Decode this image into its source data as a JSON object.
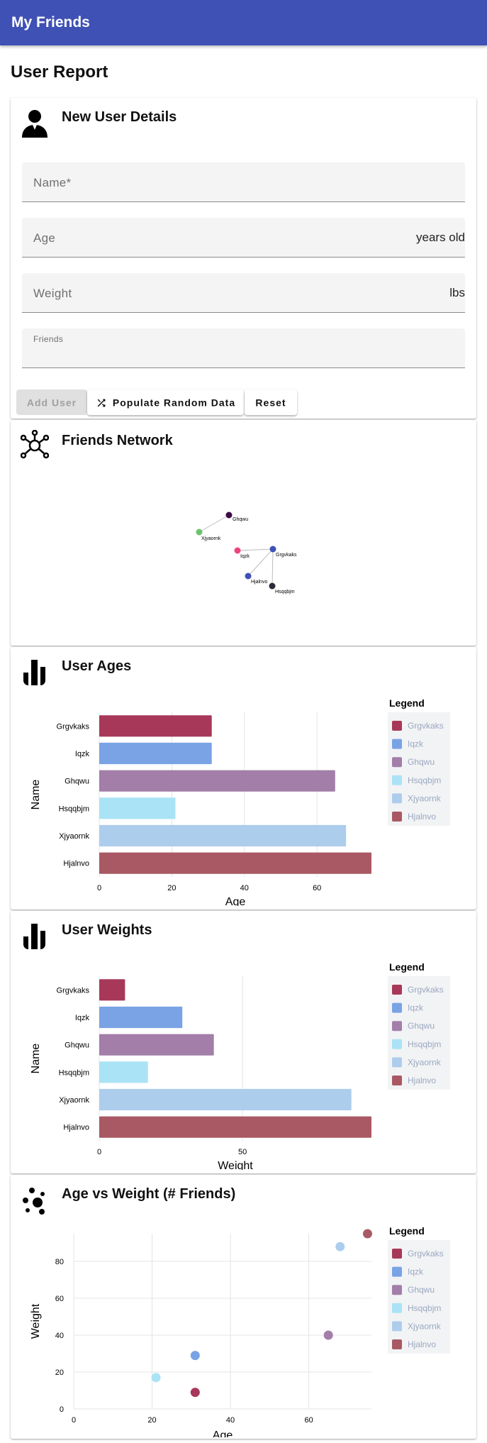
{
  "app": {
    "title": "My Friends"
  },
  "page": {
    "title": "User Report"
  },
  "user_form": {
    "title": "New User Details",
    "name_placeholder": "Name*",
    "age_placeholder": "Age",
    "age_suffix": "years old",
    "weight_placeholder": "Weight",
    "weight_suffix": "lbs",
    "friends_label": "Friends",
    "add_button": "Add User",
    "random_button": "Populate Random Data",
    "reset_button": "Reset",
    "icons": {
      "card": "person-icon",
      "random": "shuffle-icon"
    }
  },
  "network": {
    "title": "Friends Network",
    "icon": "network-icon",
    "nodes": [
      {
        "name": "Ghqwu",
        "color": "#3b0a45"
      },
      {
        "name": "Xjyaornk",
        "color": "#6cc36c"
      },
      {
        "name": "Iqzk",
        "color": "#f0447a"
      },
      {
        "name": "Grgvkaks",
        "color": "#3f51b5"
      },
      {
        "name": "Hjalnvo",
        "color": "#3f51b5"
      },
      {
        "name": "Hsqqbjm",
        "color": "#2a2a38"
      }
    ],
    "links": [
      [
        "Ghqwu",
        "Xjyaornk"
      ],
      [
        "Iqzk",
        "Grgvkaks"
      ],
      [
        "Grgvkaks",
        "Hjalnvo"
      ],
      [
        "Grgvkaks",
        "Hsqqbjm"
      ]
    ]
  },
  "legend": {
    "title": "Legend",
    "items": [
      {
        "name": "Grgvkaks",
        "color": "#a8385a"
      },
      {
        "name": "Iqzk",
        "color": "#7aa3e5"
      },
      {
        "name": "Ghqwu",
        "color": "#a27ea8"
      },
      {
        "name": "Hsqqbjm",
        "color": "#aae3f5"
      },
      {
        "name": "Xjyaornk",
        "color": "#adcded"
      },
      {
        "name": "Hjalnvo",
        "color": "#a95963"
      }
    ]
  },
  "chart_data": [
    {
      "type": "bar",
      "orientation": "horizontal",
      "title": "User Ages",
      "icon": "bar-chart-icon",
      "categories": [
        "Grgvkaks",
        "Iqzk",
        "Ghqwu",
        "Hsqqbjm",
        "Xjyaornk",
        "Hjalnvo"
      ],
      "values": [
        31,
        31,
        65,
        21,
        68,
        75
      ],
      "xlabel": "Age",
      "ylabel": "Name",
      "xlim": [
        0,
        75
      ],
      "xticks": [
        0,
        20,
        40,
        60
      ],
      "grid": true,
      "legend": "right"
    },
    {
      "type": "bar",
      "orientation": "horizontal",
      "title": "User Weights",
      "icon": "bar-chart-icon",
      "categories": [
        "Grgvkaks",
        "Iqzk",
        "Ghqwu",
        "Hsqqbjm",
        "Xjyaornk",
        "Hjalnvo"
      ],
      "values": [
        9,
        29,
        40,
        17,
        88,
        95
      ],
      "xlabel": "Weight",
      "ylabel": "Name",
      "xlim": [
        0,
        95
      ],
      "xticks": [
        0,
        50
      ],
      "grid": true,
      "legend": "right"
    },
    {
      "type": "scatter",
      "title": "Age vs Weight (# Friends)",
      "icon": "scatter-icon",
      "xlabel": "Age",
      "ylabel": "Weight",
      "xlim": [
        0,
        76
      ],
      "ylim": [
        0,
        95
      ],
      "xticks": [
        0,
        20,
        40,
        60
      ],
      "yticks": [
        0,
        20,
        40,
        60,
        80
      ],
      "grid": true,
      "legend": "right",
      "points": [
        {
          "name": "Grgvkaks",
          "x": 31,
          "y": 9
        },
        {
          "name": "Iqzk",
          "x": 31,
          "y": 29
        },
        {
          "name": "Ghqwu",
          "x": 65,
          "y": 40
        },
        {
          "name": "Hsqqbjm",
          "x": 21,
          "y": 17
        },
        {
          "name": "Xjyaornk",
          "x": 68,
          "y": 88
        },
        {
          "name": "Hjalnvo",
          "x": 75,
          "y": 95
        }
      ]
    }
  ]
}
